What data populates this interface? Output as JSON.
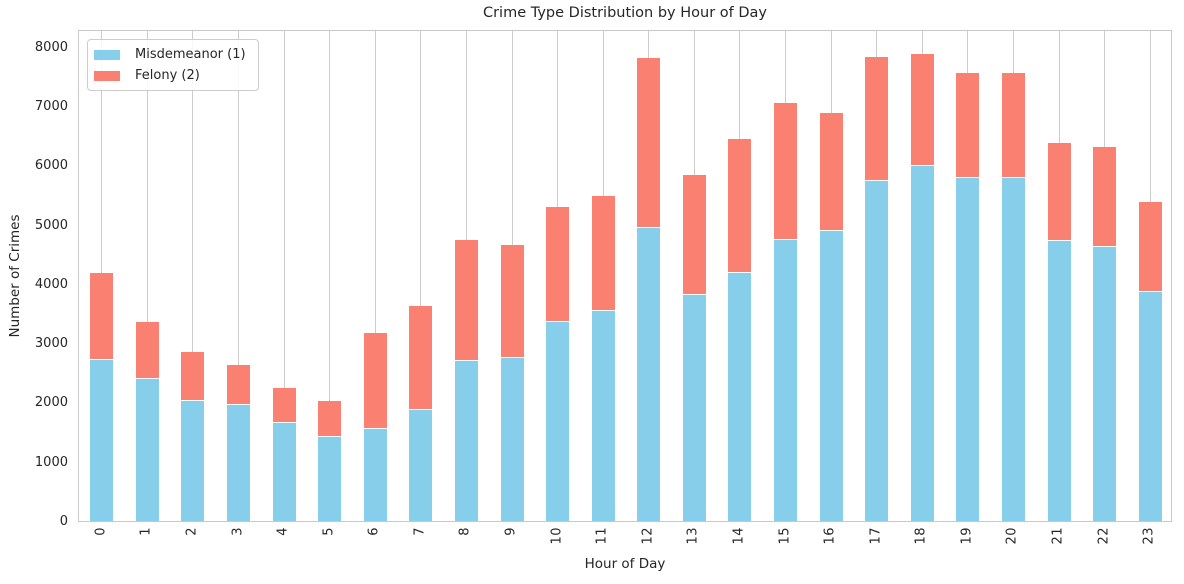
{
  "chart_data": {
    "type": "bar",
    "stacked": true,
    "title": "Crime Type Distribution by Hour of Day",
    "xlabel": "Hour of Day",
    "ylabel": "Number of Crimes",
    "categories": [
      "0",
      "1",
      "2",
      "3",
      "4",
      "5",
      "6",
      "7",
      "8",
      "9",
      "10",
      "11",
      "12",
      "13",
      "14",
      "15",
      "16",
      "17",
      "18",
      "19",
      "20",
      "21",
      "22",
      "23"
    ],
    "series": [
      {
        "name": "Misdemeanor (1)",
        "color": "#87CEEB",
        "values": [
          2720,
          2400,
          2030,
          1960,
          1650,
          1420,
          1545,
          1870,
          2700,
          2745,
          3355,
          3540,
          4950,
          3815,
          4190,
          4735,
          4885,
          5740,
          5990,
          5795,
          5780,
          4725,
          4625,
          3870
        ]
      },
      {
        "name": "Felony (2)",
        "color": "#FA8072",
        "values": [
          1465,
          950,
          815,
          680,
          600,
          605,
          1630,
          1755,
          2045,
          1915,
          1945,
          1935,
          2855,
          2020,
          2255,
          2310,
          2000,
          2090,
          1885,
          1760,
          1775,
          1650,
          1690,
          1520
        ]
      }
    ],
    "totals": [
      4185,
      3350,
      2845,
      2640,
      2250,
      2025,
      3175,
      3625,
      4745,
      4660,
      5300,
      5475,
      7805,
      5835,
      6445,
      7045,
      6885,
      7830,
      7875,
      7555,
      7555,
      6375,
      6315,
      5390
    ],
    "ylim": [
      0,
      8300
    ],
    "yticks": [
      0,
      1000,
      2000,
      3000,
      4000,
      5000,
      6000,
      7000,
      8000
    ],
    "legend_position": "upper-left",
    "grid": "vertical-only",
    "grid_color": "#cccccc",
    "background_color": "#ffffff",
    "text_color": "#262626"
  }
}
